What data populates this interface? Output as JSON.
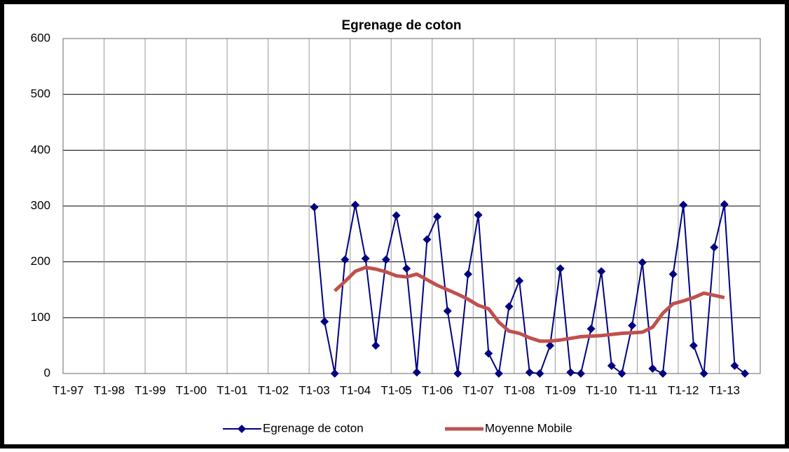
{
  "chart_data": {
    "type": "line",
    "title": "Egrenage de coton",
    "categories": [
      "T1-97",
      null,
      null,
      null,
      "T1-98",
      null,
      null,
      null,
      "T1-99",
      null,
      null,
      null,
      "T1-00",
      null,
      null,
      null,
      "T1-01",
      null,
      null,
      null,
      "T1-02",
      null,
      null,
      null,
      "T1-03",
      null,
      null,
      null,
      "T1-04",
      null,
      null,
      null,
      "T1-05",
      null,
      null,
      null,
      "T1-06",
      null,
      null,
      null,
      "T1-07",
      null,
      null,
      null,
      "T1-08",
      null,
      null,
      null,
      "T1-09",
      null,
      null,
      null,
      "T1-10",
      null,
      null,
      null,
      "T1-11",
      null,
      null,
      null,
      "T1-12",
      null,
      null,
      null,
      "T1-13",
      null,
      null,
      null
    ],
    "series": [
      {
        "name": "Egrenage de coton",
        "color": "#000080",
        "marker": "diamond",
        "values": [
          null,
          null,
          null,
          null,
          null,
          null,
          null,
          null,
          null,
          null,
          null,
          null,
          null,
          null,
          null,
          null,
          null,
          null,
          null,
          null,
          null,
          null,
          null,
          null,
          298,
          93,
          0,
          204,
          302,
          206,
          50,
          204,
          283,
          188,
          2,
          240,
          281,
          112,
          0,
          178,
          284,
          36,
          0,
          120,
          166,
          2,
          0,
          50,
          188,
          2,
          0,
          80,
          183,
          14,
          0,
          86,
          199,
          9,
          0,
          178,
          302,
          50,
          0,
          226,
          303,
          14,
          0,
          null
        ]
      },
      {
        "name": "Moyenne Mobile",
        "color": "#c0504d",
        "values": [
          null,
          null,
          null,
          null,
          null,
          null,
          null,
          null,
          null,
          null,
          null,
          null,
          null,
          null,
          null,
          null,
          null,
          null,
          null,
          null,
          null,
          null,
          null,
          null,
          null,
          null,
          148,
          165,
          183,
          190,
          187,
          182,
          175,
          173,
          178,
          168,
          158,
          150,
          142,
          133,
          122,
          116,
          92,
          76,
          72,
          64,
          58,
          58,
          60,
          63,
          66,
          67,
          68,
          70,
          72,
          73,
          74,
          83,
          108,
          125,
          130,
          136,
          144,
          140,
          136,
          null,
          null,
          null
        ]
      }
    ],
    "ylim": [
      0,
      600
    ],
    "yticks": [
      0,
      100,
      200,
      300,
      400,
      500,
      600
    ],
    "grid": true,
    "legend": "bottom"
  }
}
